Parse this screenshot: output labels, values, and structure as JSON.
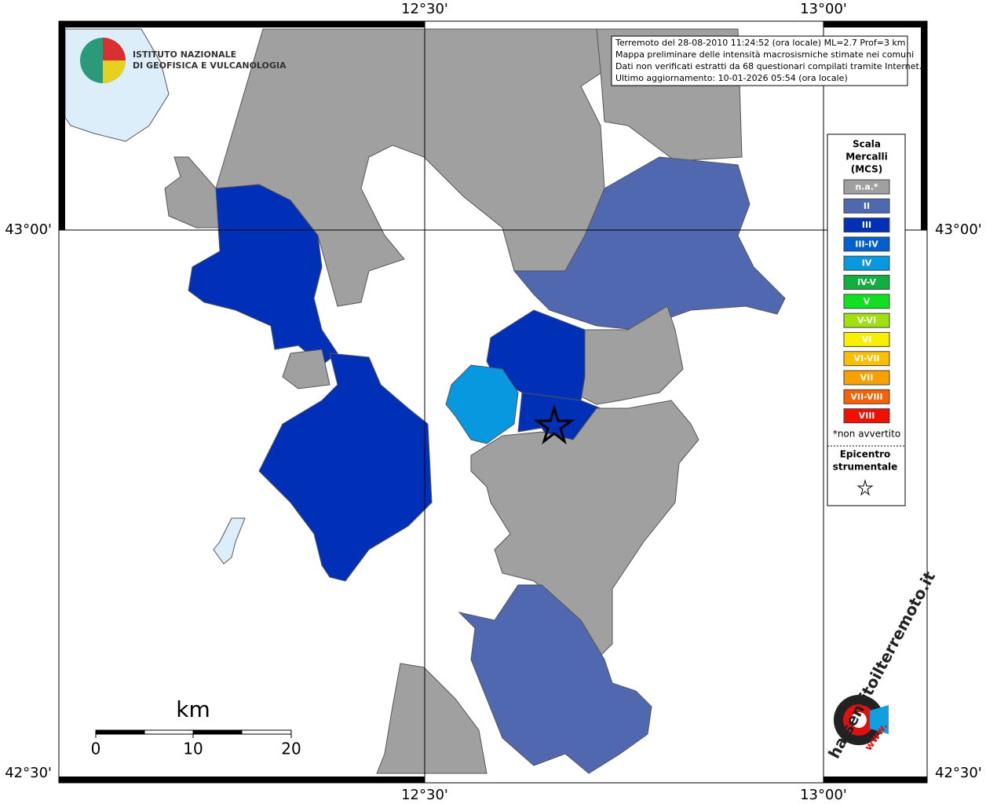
{
  "map": {
    "axis_labels": {
      "top": [
        "12°30'",
        "13°00'"
      ],
      "bottom": [
        "12°30'",
        "13°00'"
      ],
      "left": [
        "43°00'",
        "42°30'"
      ],
      "right": [
        "43°00'",
        "42°30'"
      ]
    },
    "info": [
      "Terremoto del 28-08-2010 11:24:52 (ora locale) ML=2.7 Prof=3 km",
      "Mappa preliminare delle intensità macrosismiche stimate nei comuni",
      "Dati non verificati estratti da 68 questionari compilati tramite Internet.",
      "Ultimo aggiornamento: 10-01-2026 05:54 (ora locale)"
    ],
    "logo": [
      "ISTITUTO NAZIONALE",
      "DI GEOFISICA E VULCANOLOGIA"
    ],
    "legend": {
      "title": [
        "Scala",
        "Mercalli",
        "(MCS)"
      ],
      "items": [
        {
          "label": "n.a.*",
          "color": "#a0a0a0"
        },
        {
          "label": "II",
          "color": "#5068b0"
        },
        {
          "label": "III",
          "color": "#0030b8"
        },
        {
          "label": "III-IV",
          "color": "#0060d0"
        },
        {
          "label": "IV",
          "color": "#0898e0"
        },
        {
          "label": "IV-V",
          "color": "#10b040"
        },
        {
          "label": "V",
          "color": "#10e020"
        },
        {
          "label": "V-VI",
          "color": "#a0e010"
        },
        {
          "label": "VI",
          "color": "#f8f000"
        },
        {
          "label": "VI-VII",
          "color": "#f8c000"
        },
        {
          "label": "VII",
          "color": "#f8a000"
        },
        {
          "label": "VII-VIII",
          "color": "#f86000"
        },
        {
          "label": "VIII",
          "color": "#f01000"
        }
      ],
      "note": "*non avvertito",
      "epicenter": [
        "Epicentro",
        "strumentale"
      ]
    },
    "scale": {
      "unit": "km",
      "ticks": [
        "0",
        "10",
        "20"
      ]
    },
    "site": "haisentitoilterremoto.it",
    "site_prefix": "www."
  }
}
